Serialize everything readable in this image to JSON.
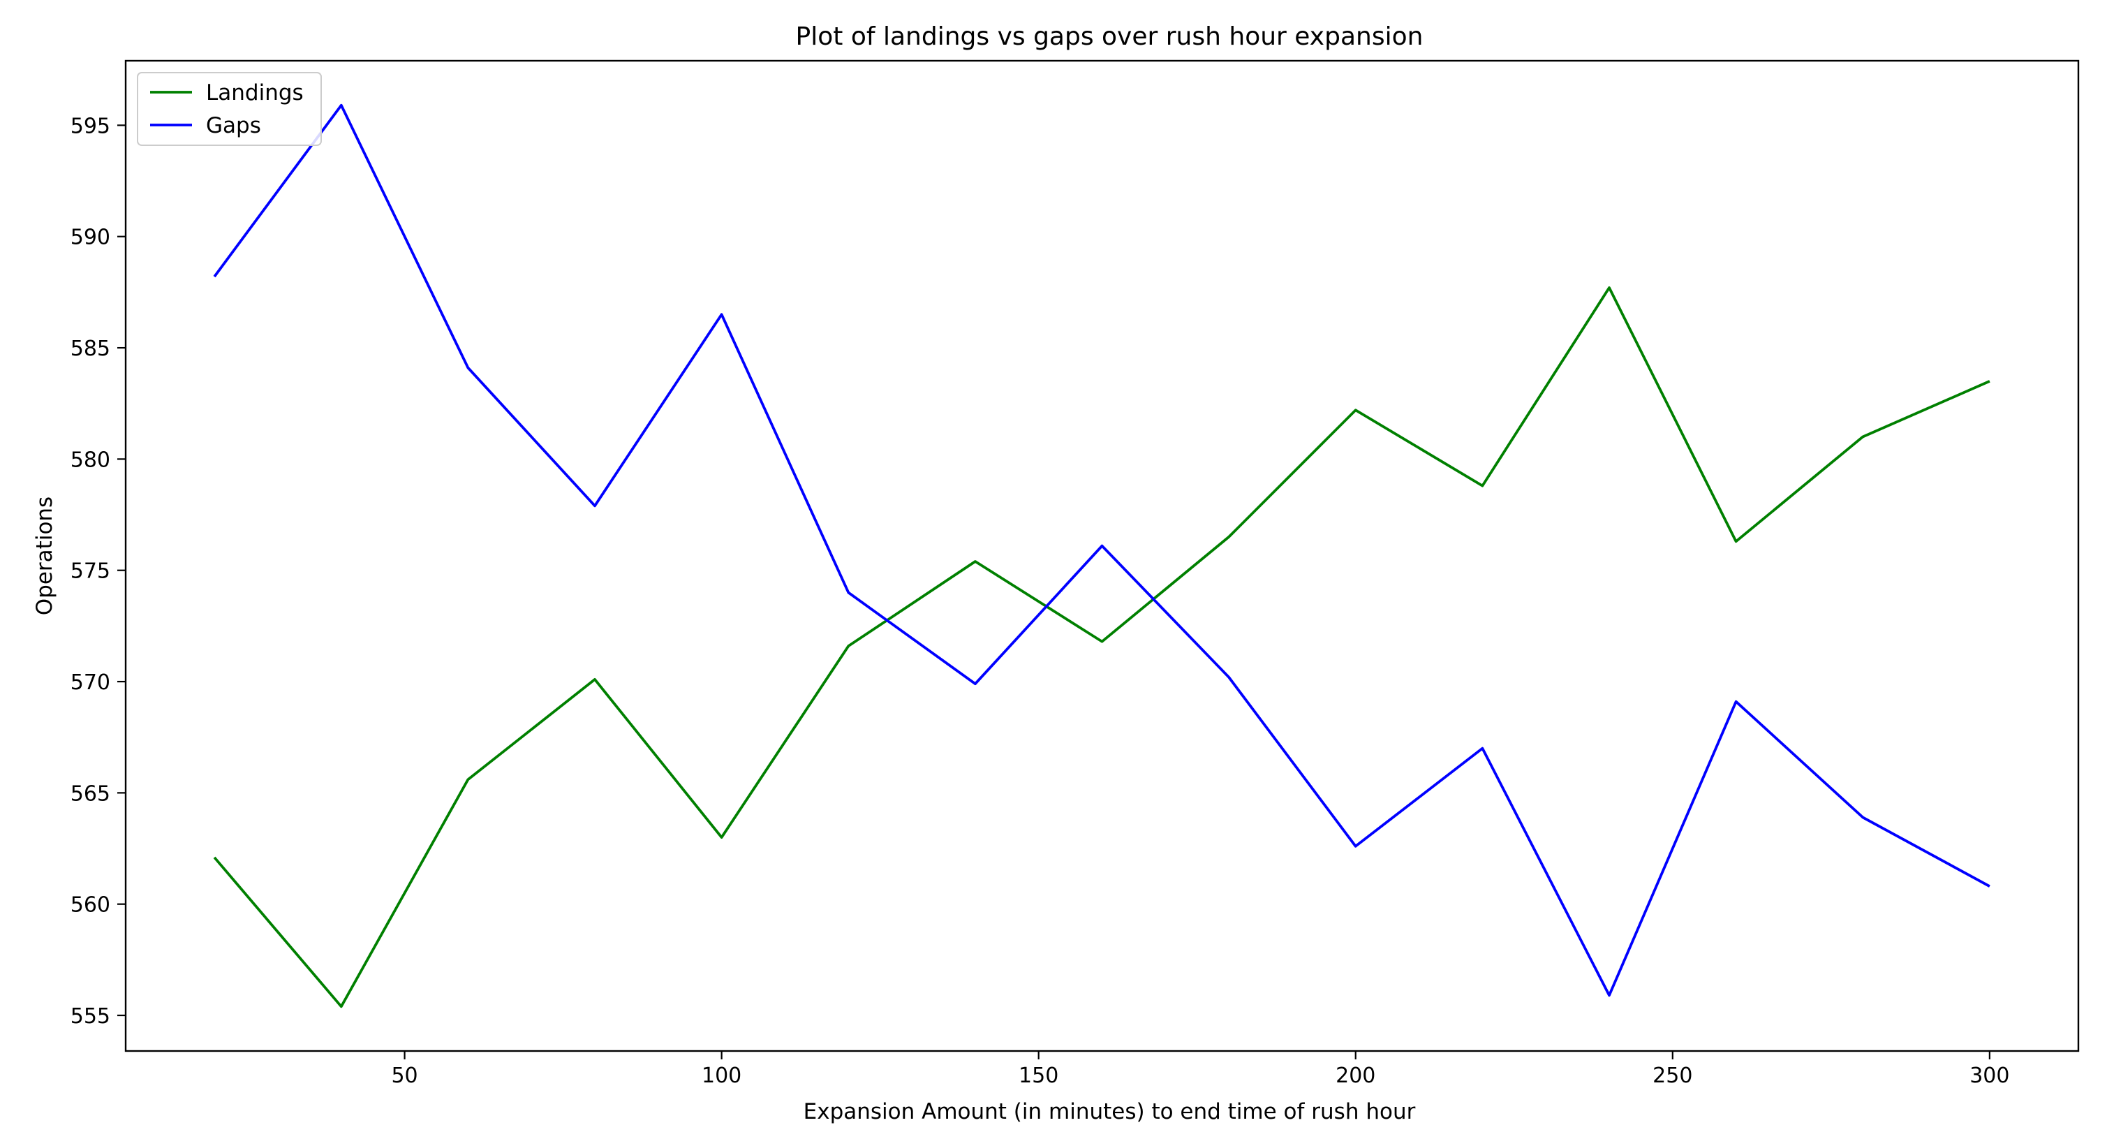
{
  "chart_data": {
    "type": "line",
    "title": "Plot of landings vs gaps over rush hour expansion",
    "xlabel": "Expansion Amount (in minutes) to end time of rush hour",
    "ylabel": "Operations",
    "xlim": [
      6,
      314
    ],
    "ylim": [
      553.4,
      597.9
    ],
    "xticks": [
      50,
      100,
      150,
      200,
      250,
      300
    ],
    "yticks": [
      555,
      560,
      565,
      570,
      575,
      580,
      585,
      590,
      595
    ],
    "grid": false,
    "legend": "top-left",
    "x": [
      20,
      40,
      60,
      80,
      100,
      120,
      140,
      160,
      180,
      200,
      220,
      240,
      260,
      280,
      300
    ],
    "series": [
      {
        "name": "Landings",
        "color": "#008000",
        "values": [
          562.1,
          555.4,
          565.6,
          570.1,
          563.0,
          571.6,
          575.4,
          571.8,
          576.5,
          582.2,
          578.8,
          587.7,
          576.3,
          581.0,
          583.5
        ]
      },
      {
        "name": "Gaps",
        "color": "#0000ff",
        "values": [
          588.2,
          595.9,
          584.1,
          577.9,
          586.5,
          574.0,
          569.9,
          576.1,
          570.2,
          562.6,
          567.0,
          555.9,
          569.1,
          563.9,
          560.8
        ]
      }
    ]
  }
}
